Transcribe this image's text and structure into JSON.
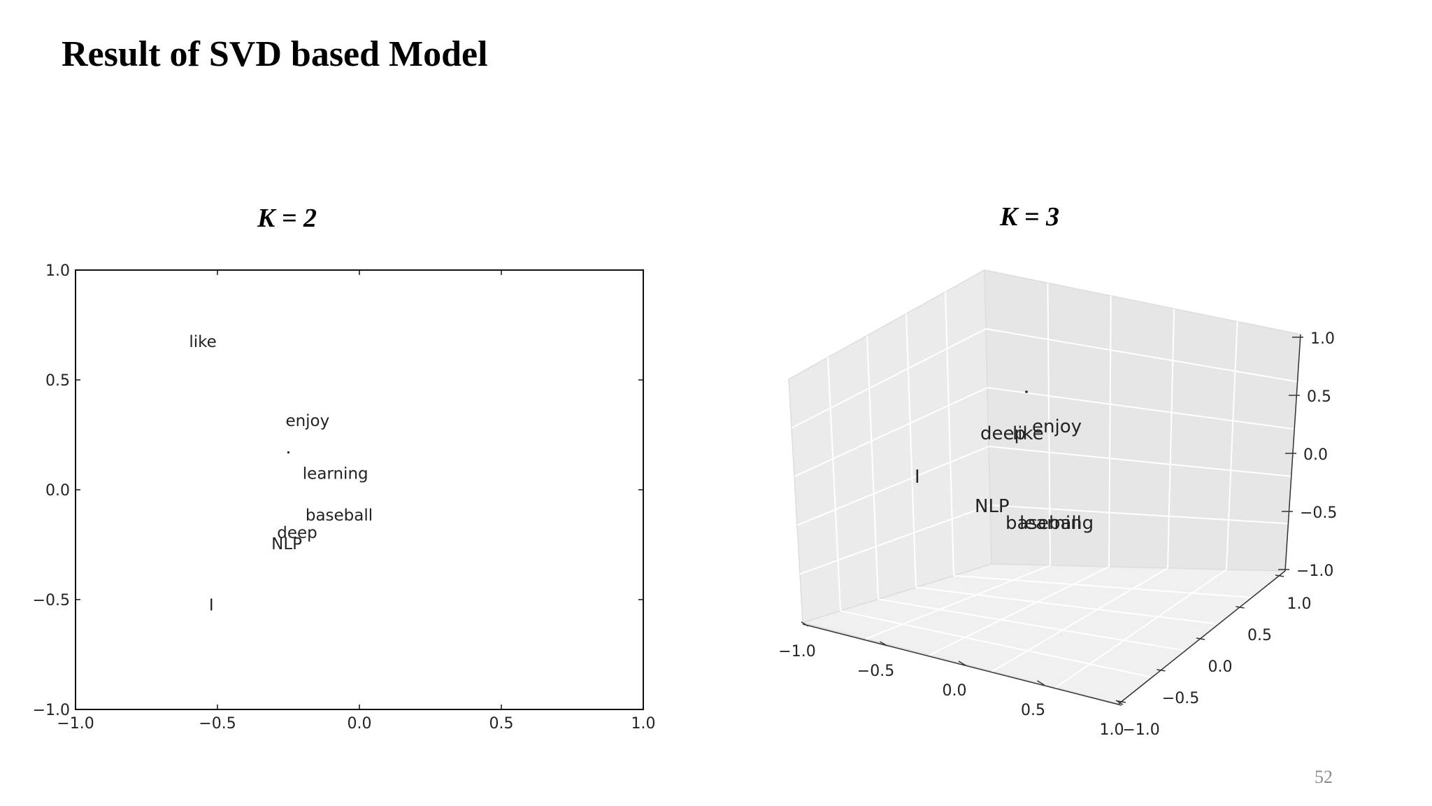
{
  "slide": {
    "title": "Result of SVD based Model",
    "page_number": "52"
  },
  "chart_data": [
    {
      "type": "scatter",
      "title": "K = 2",
      "xlabel": "",
      "ylabel": "",
      "xlim": [
        -1.0,
        1.0
      ],
      "ylim": [
        -1.0,
        1.0
      ],
      "xticks": [
        "−1.0",
        "−0.5",
        "0.0",
        "0.5",
        "1.0"
      ],
      "yticks": [
        "−1.0",
        "−0.5",
        "0.0",
        "0.5",
        "1.0"
      ],
      "grid": false,
      "points": [
        {
          "label": "like",
          "x": -0.6,
          "y": 0.65
        },
        {
          "label": "enjoy",
          "x": -0.26,
          "y": 0.29
        },
        {
          "label": "learning",
          "x": -0.2,
          "y": 0.05
        },
        {
          "label": "baseball",
          "x": -0.19,
          "y": -0.14
        },
        {
          "label": "deep",
          "x": -0.29,
          "y": -0.22
        },
        {
          "label": "NLP",
          "x": -0.31,
          "y": -0.27
        },
        {
          "label": "I",
          "x": -0.53,
          "y": -0.55
        },
        {
          "label": ".",
          "x": -0.25,
          "y": 0.17
        }
      ]
    },
    {
      "type": "scatter",
      "title": "K = 3",
      "projection": "3d",
      "xlim": [
        -1.0,
        1.0
      ],
      "ylim": [
        -1.0,
        1.0
      ],
      "zlim": [
        -1.0,
        1.0
      ],
      "xticks": [
        "−1.0",
        "−0.5",
        "0.0",
        "0.5",
        "1.0"
      ],
      "yticks": [
        "−1.0",
        "−0.5",
        "0.0",
        "0.5",
        "1.0"
      ],
      "zticks": [
        "−1.0",
        "−0.5",
        "0.0",
        "0.5",
        "1.0"
      ],
      "grid": true,
      "points": [
        {
          "label": "enjoy"
        },
        {
          "label": "like"
        },
        {
          "label": "deep"
        },
        {
          "label": "I"
        },
        {
          "label": "NLP"
        },
        {
          "label": "baseball"
        },
        {
          "label": "learning"
        },
        {
          "label": "."
        }
      ]
    }
  ]
}
